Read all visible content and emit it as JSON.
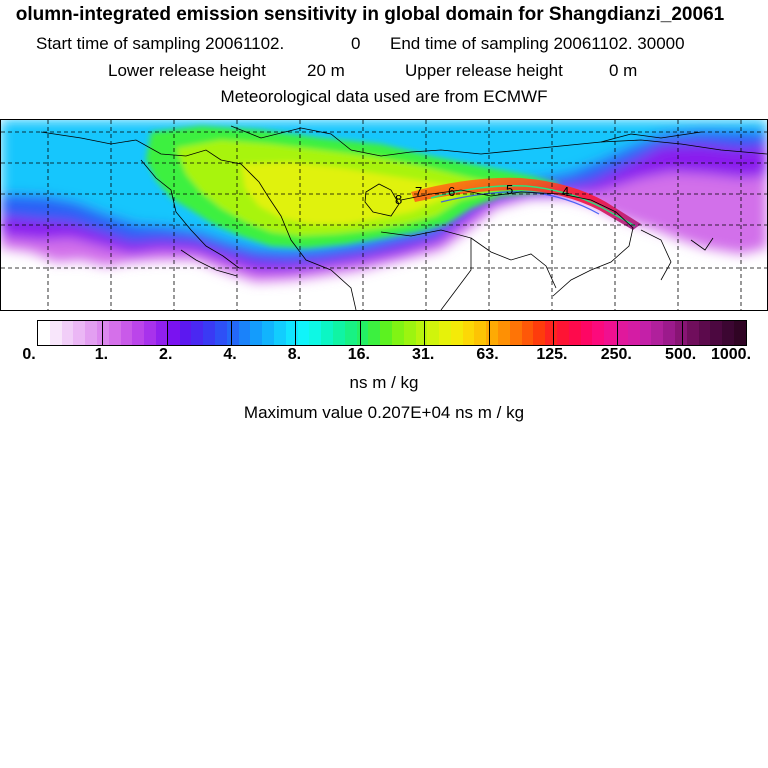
{
  "figure": {
    "title": "olumn-integrated emission sensitivity in global domain for Shangdianzi_20061",
    "start_label": "Start time of sampling 20061102.",
    "start_value": "0",
    "end_label": "End time of sampling 20061102. 30000",
    "lower_label": "Lower release height",
    "lower_value": "20 m",
    "upper_label": "Upper release height",
    "upper_value": "0 m",
    "met_line": "Meteorological data used are from ECMWF"
  },
  "map": {
    "projection": "lat-lon",
    "gridlines": "dashed",
    "trajectory_labels": [
      "8",
      "7",
      "6",
      "5",
      "4"
    ],
    "colors": {
      "background": "#ffffff",
      "coast": "#000000"
    }
  },
  "legend": {
    "tick_labels": [
      "0.",
      "1.",
      "2.",
      "4.",
      "8.",
      "16.",
      "31.",
      "63.",
      "125.",
      "250.",
      "500.",
      "1000."
    ],
    "colors": [
      "#ffffff",
      "#f8e6fb",
      "#f1cef8",
      "#ebb7f5",
      "#e39ff1",
      "#dc88ee",
      "#d570ea",
      "#c95ae9",
      "#bb45ea",
      "#a832ec",
      "#9120ee",
      "#7a12f0",
      "#5c18f0",
      "#4a28f2",
      "#3a3af4",
      "#2e50f6",
      "#2468f8",
      "#1a82fa",
      "#149cfc",
      "#12b4fd",
      "#12cdfe",
      "#12e4ff",
      "#10f4fa",
      "#0ef8e4",
      "#0cf6c4",
      "#10f4a4",
      "#18f284",
      "#24f064",
      "#3cf040",
      "#5cf220",
      "#80f414",
      "#9cf410",
      "#b8f40e",
      "#d0f40c",
      "#e6f20a",
      "#f4ea08",
      "#fcd806",
      "#fdc404",
      "#feaa04",
      "#fe9004",
      "#fe7406",
      "#fe5808",
      "#fe3c0c",
      "#fe2420",
      "#fe1434",
      "#fe0a4c",
      "#fe0664",
      "#fc0a7c",
      "#f01090",
      "#e0189c",
      "#d41ca4",
      "#c420a8",
      "#b0209c",
      "#9c1a8c",
      "#881474",
      "#700e5c",
      "#5c0a4c",
      "#4c0840",
      "#3c0632",
      "#300424"
    ],
    "unit": "ns m / kg",
    "max_label": "Maximum value  0.207E+04 ns m / kg"
  }
}
